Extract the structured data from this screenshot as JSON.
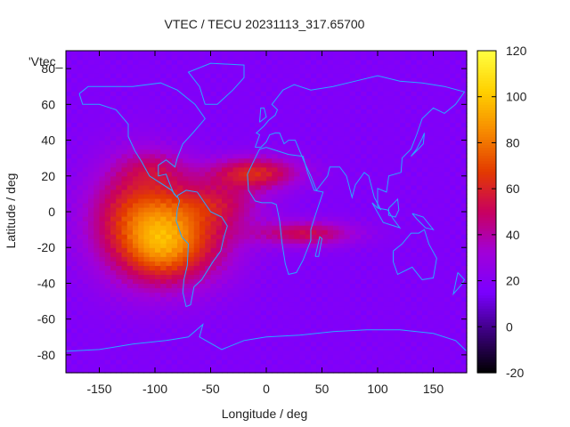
{
  "chart_data": {
    "type": "heatmap",
    "title": "VTEC / TECU 20231113_317.65700",
    "series_label": "'Vtec_",
    "xlabel": "Longitude / deg",
    "ylabel": "Latitude / deg",
    "xlim": [
      -180,
      180
    ],
    "ylim": [
      -90,
      90
    ],
    "xticks": [
      -150,
      -100,
      -50,
      0,
      50,
      100,
      150
    ],
    "xtick_labels": [
      "-150",
      "-100",
      "-50",
      "0",
      "50",
      "100",
      "150"
    ],
    "yticks": [
      -80,
      -60,
      -40,
      -20,
      0,
      20,
      40,
      60,
      80
    ],
    "ytick_labels": [
      "-80",
      "-60",
      "-40",
      "-20",
      "0",
      "20",
      "40",
      "60",
      "80"
    ],
    "colorbar": {
      "range": [
        -20,
        120
      ],
      "ticks": [
        -20,
        0,
        20,
        40,
        60,
        80,
        100,
        120
      ],
      "tick_labels": [
        "-20",
        "0",
        "20",
        "40",
        "60",
        "80",
        "100",
        "120"
      ],
      "palette": [
        "#000000",
        "#3a007a",
        "#7a00ff",
        "#a100d9",
        "#c80060",
        "#e33a00",
        "#f78a00",
        "#ffd000",
        "#ffff40"
      ]
    },
    "background_value": 18,
    "blobs": [
      {
        "lon": -115,
        "lat": -5,
        "rlon": 45,
        "rlat": 32,
        "amp": 48
      },
      {
        "lon": -70,
        "lat": -15,
        "rlon": 45,
        "rlat": 25,
        "amp": 38
      },
      {
        "lon": -95,
        "lat": -20,
        "rlon": 28,
        "rlat": 18,
        "amp": 18
      },
      {
        "lon": -10,
        "lat": 22,
        "rlon": 40,
        "rlat": 9,
        "amp": 42
      },
      {
        "lon": 35,
        "lat": -12,
        "rlon": 45,
        "rlat": 7,
        "amp": 34
      },
      {
        "lon": -40,
        "lat": 5,
        "rlon": 40,
        "rlat": 12,
        "amp": 22
      },
      {
        "lon": -100,
        "lat": 25,
        "rlon": 30,
        "rlat": 10,
        "amp": 14
      }
    ],
    "coastlines": "world continents outline (cyan)",
    "coastline_color": "#29a8ff"
  }
}
